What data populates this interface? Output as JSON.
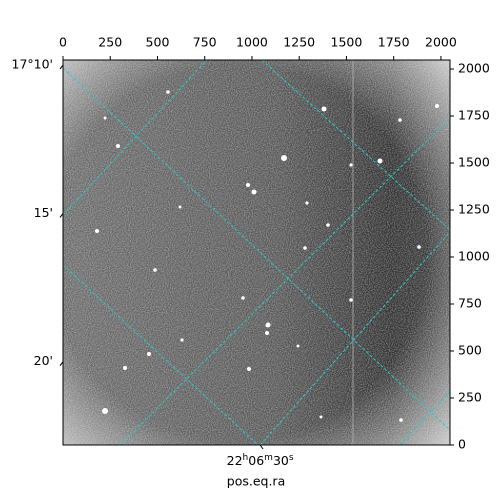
{
  "chart_data": {
    "type": "image",
    "xlabel": "pos.eq.ra",
    "xlim": [
      0,
      2048
    ],
    "ylim": [
      0,
      2048
    ],
    "xticks": [
      0,
      250,
      500,
      750,
      1000,
      1250,
      1500,
      1750,
      2000
    ],
    "yticks": [
      0,
      250,
      500,
      750,
      1000,
      1250,
      1500,
      1750,
      2000
    ],
    "dec_ticks": [
      {
        "value": 2021,
        "label": "17°10'"
      },
      {
        "value": 1232,
        "label": "15'"
      },
      {
        "value": 443,
        "label": "20'"
      }
    ],
    "ra_ticks": [
      {
        "value": 1043,
        "label_parts": [
          "22",
          "h",
          "06",
          "m",
          "30",
          "s"
        ]
      }
    ]
  }
}
